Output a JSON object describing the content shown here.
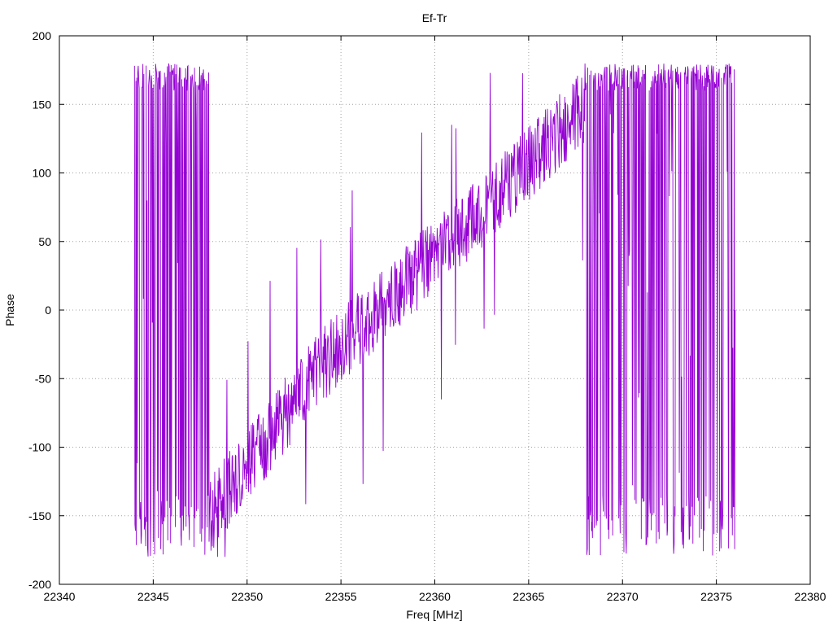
{
  "chart_data": {
    "type": "line",
    "title": "Ef-Tr",
    "xlabel": "Freq [MHz]",
    "ylabel": "Phase",
    "xlim": [
      22340,
      22380
    ],
    "ylim": [
      -200,
      200
    ],
    "xticks": [
      22340,
      22345,
      22350,
      22355,
      22360,
      22365,
      22370,
      22375,
      22380
    ],
    "yticks": [
      -200,
      -150,
      -100,
      -50,
      0,
      50,
      100,
      150,
      200
    ],
    "grid": true,
    "line_color": "#9400d3",
    "series": [
      {
        "x_start": 22344.0,
        "x_end": 22376.0,
        "segments": [
          {
            "from": 22344.0,
            "to": 22348.0,
            "mode": "wrap"
          },
          {
            "from": 22348.0,
            "to": 22354.0,
            "mode": "trend",
            "y0": -150,
            "y1": -40
          },
          {
            "from": 22354.0,
            "to": 22365.3,
            "mode": "trend",
            "y0": -40,
            "y1": 110
          },
          {
            "from": 22365.3,
            "to": 22368.0,
            "mode": "trend",
            "y0": 110,
            "y1": 150
          },
          {
            "from": 22368.0,
            "to": 22376.0,
            "mode": "wrap"
          }
        ]
      }
    ]
  }
}
